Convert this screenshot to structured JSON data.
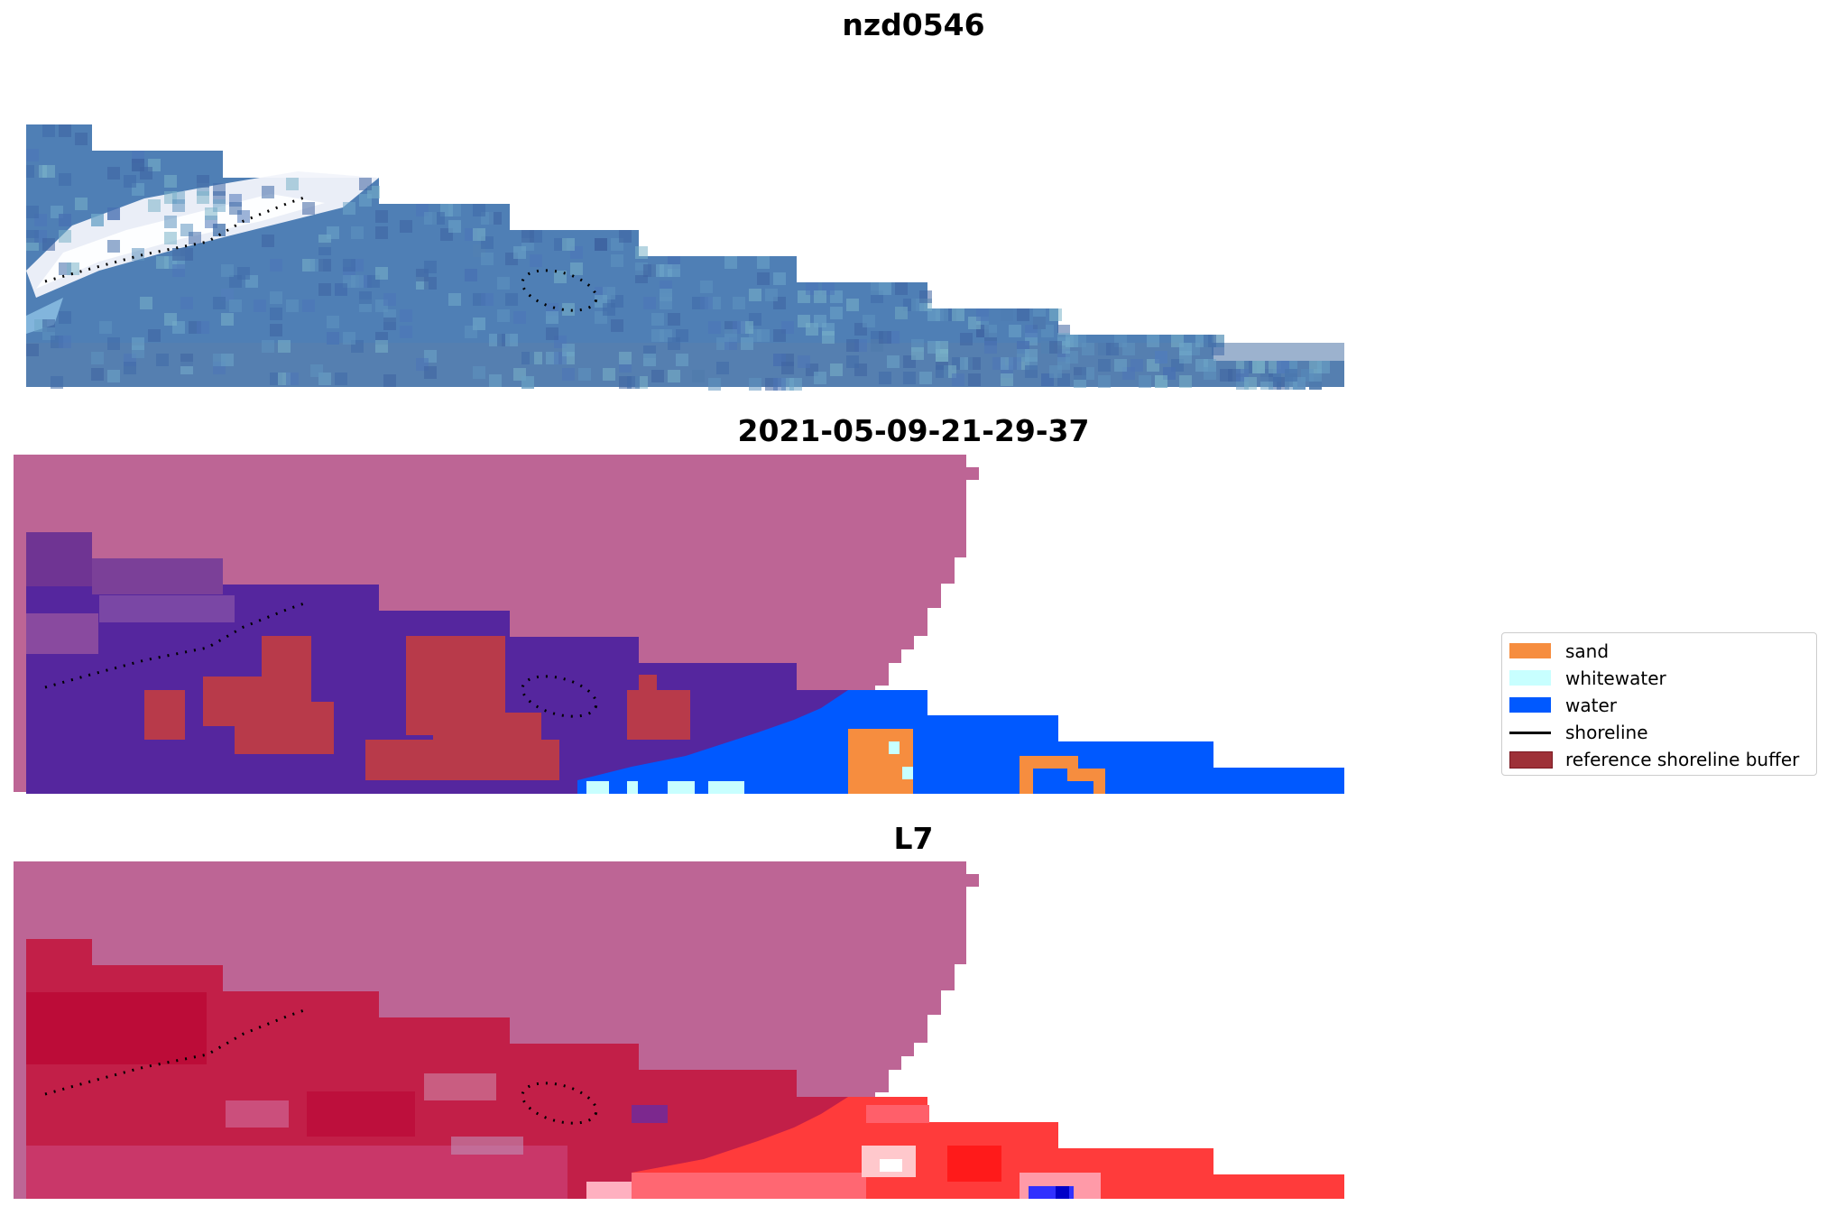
{
  "titles": {
    "panel1": "nzd0546",
    "panel2": "2021-05-09-21-29-37",
    "panel3": "L7"
  },
  "legend": [
    {
      "label": "sand",
      "color": "#f68d3f",
      "kind": "patch"
    },
    {
      "label": "whitewater",
      "color": "#c8ffff",
      "kind": "patch"
    },
    {
      "label": "water",
      "color": "#0059ff",
      "kind": "patch"
    },
    {
      "label": "shoreline",
      "color": "#000000",
      "kind": "line"
    },
    {
      "label": "reference shoreline buffer",
      "color": "#9e3138",
      "kind": "patch"
    }
  ],
  "colors": {
    "rgb_base": "#4a78b0",
    "rgb_whitewash": "#e8eef8",
    "mask": "#bd6595",
    "classified_land": "#55269e",
    "classified_buffer": "#b83a4a",
    "classified_water": "#0059ff",
    "classified_sand": "#f68d3f",
    "classified_white": "#c8ffff",
    "ndwi_land": "#c0204a",
    "ndwi_water": "#ff3b3b"
  }
}
